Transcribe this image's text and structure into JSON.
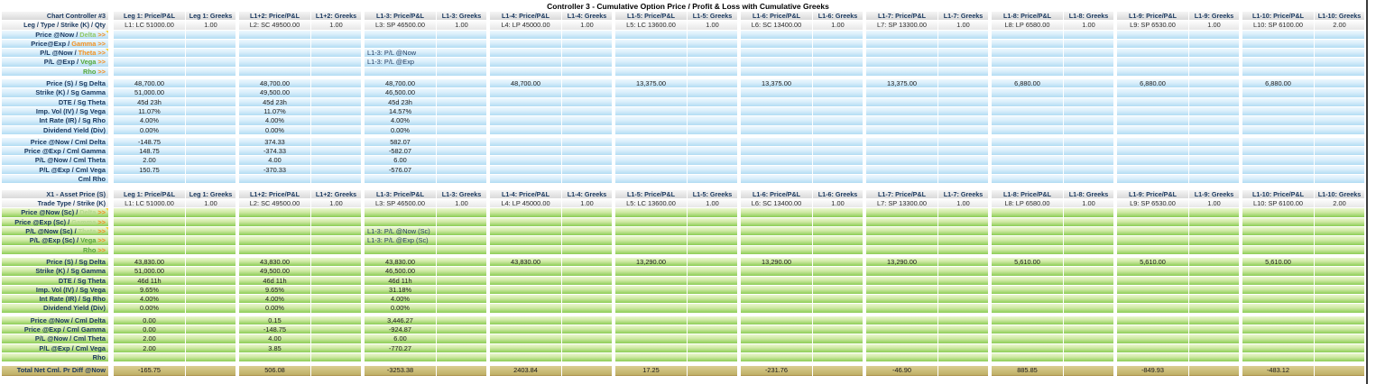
{
  "title": "Controller 3 - Cumulative Option Price / Profit & Loss with Cumulative Greeks",
  "colors": {
    "orange_accent": "#f08c1e",
    "green_accent": "#52a83a",
    "dim_green_blue_section": "#8fc866",
    "dim_green_green_section": "#b5d98e",
    "navy_label": "#17365d",
    "tan_total_row": "#c9bc77",
    "note_yellow": "#f6d33c"
  },
  "groups": [
    {
      "price_header": "Leg 1: Price/P&L",
      "greeks_header": "Leg 1: Greeks",
      "leg": "L1: LC 51000.00",
      "qty": "1.00"
    },
    {
      "price_header": "L1+2: Price/P&L",
      "greeks_header": "L1+2: Greeks",
      "leg": "L2: SC 49500.00",
      "qty": "1.00"
    },
    {
      "price_header": "L1-3: Price/P&L",
      "greeks_header": "L1-3: Greeks",
      "leg": "L3: SP 46500.00",
      "qty": "1.00"
    },
    {
      "price_header": "L1-4: Price/P&L",
      "greeks_header": "L1-4: Greeks",
      "leg": "L4: LP 45000.00",
      "qty": "1.00"
    },
    {
      "price_header": "L1-5: Price/P&L",
      "greeks_header": "L1-5: Greeks",
      "leg": "L5: LC 13600.00",
      "qty": "1.00"
    },
    {
      "price_header": "L1-6: Price/P&L",
      "greeks_header": "L1-6: Greeks",
      "leg": "L6: SC 13400.00",
      "qty": "1.00"
    },
    {
      "price_header": "L1-7: Price/P&L",
      "greeks_header": "L1-7: Greeks",
      "leg": "L7: SP 13300.00",
      "qty": "1.00"
    },
    {
      "price_header": "L1-8: Price/P&L",
      "greeks_header": "L1-8: Greeks",
      "leg": "L8: LP 6580.00",
      "qty": "1.00"
    },
    {
      "price_header": "L1-9: Price/P&L",
      "greeks_header": "L1-9: Greeks",
      "leg": "L9: SP 6530.00",
      "qty": "1.00"
    },
    {
      "price_header": "L1-10: Price/P&L",
      "greeks_header": "L1-10: Greeks",
      "leg": "L10: SP 6100.00",
      "qty": "2.00"
    }
  ],
  "sections": [
    {
      "theme": "blue",
      "corner_label": "Chart Controller #3",
      "corner_note": true,
      "leg_row_label": "Leg / Type / Strike (K) / Qty",
      "greek_rows": [
        {
          "label": "Price @Now /",
          "greek": "Delta",
          "arrows": ">>",
          "greek_color": "#8fc866",
          "note": true,
          "annotations": {}
        },
        {
          "label": "Price@Exp /",
          "greek": "Gamma",
          "arrows": ">>",
          "greek_color": "#f29222",
          "annotations": {}
        },
        {
          "label": "P/L @Now /",
          "greek": "Theta",
          "arrows": ">>",
          "greek_color": "#f29222",
          "note": true,
          "annotations": {
            "2": "L1-3: P/L @Now"
          }
        },
        {
          "label": "P/L @Exp /",
          "greek": "Vega",
          "arrows": ">>",
          "greek_color": "#52a83a",
          "annotations": {
            "2": "L1-3: P/L @Exp"
          }
        },
        {
          "label": "",
          "greek": "Rho",
          "arrows": ">>",
          "greek_color": "#52a83a",
          "annotations": {}
        }
      ],
      "param_rows": [
        {
          "label": "Price (S) / Sg Delta",
          "note": true,
          "values": [
            "48,700.00",
            "48,700.00",
            "48,700.00",
            "48,700.00",
            "13,375.00",
            "13,375.00",
            "13,375.00",
            "6,880.00",
            "6,880.00",
            "6,880.00"
          ]
        },
        {
          "label": "Strike (K) / Sg Gamma",
          "values": [
            "51,000.00",
            "49,500.00",
            "46,500.00",
            "",
            "",
            "",
            "",
            "",
            "",
            ""
          ]
        },
        {
          "label": "DTE / Sg Theta",
          "values": [
            "45d 23h",
            "45d 23h",
            "45d 23h",
            "",
            "",
            "",
            "",
            "",
            "",
            ""
          ]
        },
        {
          "label": "Imp. Vol (IV) / Sg Vega",
          "values": [
            "11.07%",
            "11.07%",
            "14.57%",
            "",
            "",
            "",
            "",
            "",
            "",
            ""
          ]
        },
        {
          "label": "Int Rate (IR) / Sg Rho",
          "values": [
            "4.00%",
            "4.00%",
            "4.00%",
            "",
            "",
            "",
            "",
            "",
            "",
            ""
          ]
        },
        {
          "label": "Dividend Yield (Div)",
          "values": [
            "0.00%",
            "0.00%",
            "0.00%",
            "",
            "",
            "",
            "",
            "",
            "",
            ""
          ]
        }
      ],
      "cml_rows": [
        {
          "label": "Price @Now / Cml Delta",
          "note": true,
          "values": [
            "-148.75",
            "374.33",
            "582.07",
            "",
            "",
            "",
            "",
            "",
            "",
            ""
          ]
        },
        {
          "label": "Price @Exp / Cml Gamma",
          "values": [
            "148.75",
            "-374.33",
            "-582.07",
            "",
            "",
            "",
            "",
            "",
            "",
            ""
          ]
        },
        {
          "label": "P/L @Now / Cml Theta",
          "values": [
            "2.00",
            "4.00",
            "6.00",
            "",
            "",
            "",
            "",
            "",
            "",
            ""
          ]
        },
        {
          "label": "P/L @Exp / Cml Vega",
          "values": [
            "150.75",
            "-370.33",
            "-576.07",
            "",
            "",
            "",
            "",
            "",
            "",
            ""
          ]
        },
        {
          "label": "Cml Rho",
          "values": [
            "",
            "",
            "",
            "",
            "",
            "",
            "",
            "",
            "",
            ""
          ]
        }
      ]
    },
    {
      "theme": "green",
      "corner_label": "X1 - Asset Price (S)",
      "corner_note": false,
      "leg_row_label": "Trade Type / Strike (K)",
      "greek_rows": [
        {
          "label": "Price @Now (Sc) /",
          "greek": "Delta",
          "arrows": ">>",
          "greek_color": "#b5d98e",
          "note": true,
          "annotations": {}
        },
        {
          "label": "Price @Exp (Sc) /",
          "greek": "Gamma",
          "arrows": ">>",
          "greek_color": "#b5d98e",
          "annotations": {}
        },
        {
          "label": "P/L @Now (Sc) /",
          "greek": "Theta",
          "arrows": ">>",
          "greek_color": "#b5d98e",
          "note": true,
          "annotations": {
            "2": "L1-3: P/L @Now (Sc)"
          }
        },
        {
          "label": "P/L @Exp (Sc) /",
          "greek": "Vega",
          "arrows": ">>",
          "greek_color": "#5aa53c",
          "annotations": {
            "2": "L1-3: P/L @Exp (Sc)"
          }
        },
        {
          "label": "",
          "greek": "Rho",
          "arrows": ">>",
          "greek_color": "#5aa53c",
          "annotations": {}
        }
      ],
      "param_rows": [
        {
          "label": "Price (S) / Sg Delta",
          "note": true,
          "values": [
            "43,830.00",
            "43,830.00",
            "43,830.00",
            "43,830.00",
            "13,290.00",
            "13,290.00",
            "13,290.00",
            "5,610.00",
            "5,610.00",
            "5,610.00"
          ]
        },
        {
          "label": "Strike (K) / Sg Gamma",
          "values": [
            "51,000.00",
            "49,500.00",
            "46,500.00",
            "",
            "",
            "",
            "",
            "",
            "",
            ""
          ]
        },
        {
          "label": "DTE / Sg Theta",
          "values": [
            "46d 11h",
            "46d 11h",
            "46d 11h",
            "",
            "",
            "",
            "",
            "",
            "",
            ""
          ]
        },
        {
          "label": "Imp. Vol (IV) / Sg Vega",
          "values": [
            "9.65%",
            "9.65%",
            "31.18%",
            "",
            "",
            "",
            "",
            "",
            "",
            ""
          ]
        },
        {
          "label": "Int Rate (IR) / Sg Rho",
          "values": [
            "4.00%",
            "4.00%",
            "4.00%",
            "",
            "",
            "",
            "",
            "",
            "",
            ""
          ]
        },
        {
          "label": "Dividend Yield (Div)",
          "values": [
            "0.00%",
            "0.00%",
            "0.00%",
            "",
            "",
            "",
            "",
            "",
            "",
            ""
          ]
        }
      ],
      "cml_rows": [
        {
          "label": "Price @Now / Cml Delta",
          "note": true,
          "values": [
            "0.00",
            "0.15",
            "3,446.27",
            "",
            "",
            "",
            "",
            "",
            "",
            ""
          ]
        },
        {
          "label": "Price @Exp / Cml Gamma",
          "values": [
            "0.00",
            "-148.75",
            "-924.87",
            "",
            "",
            "",
            "",
            "",
            "",
            ""
          ]
        },
        {
          "label": "P/L @Now / Cml Theta",
          "values": [
            "2.00",
            "4.00",
            "6.00",
            "",
            "",
            "",
            "",
            "",
            "",
            ""
          ]
        },
        {
          "label": "P/L @Exp / Cml Vega",
          "values": [
            "2.00",
            "3.85",
            "-770.27",
            "",
            "",
            "",
            "",
            "",
            "",
            ""
          ]
        },
        {
          "label": "Rho",
          "values": [
            "",
            "",
            "",
            "",
            "",
            "",
            "",
            "",
            "",
            ""
          ]
        }
      ]
    }
  ],
  "total_row": {
    "label": "Total Net Cml. Pr Diff @Now",
    "values": [
      "-165.75",
      "506.08",
      "-3253.38",
      "2403.84",
      "17.25",
      "-231.76",
      "-46.90",
      "885.85",
      "-849.93",
      "-483.12"
    ]
  }
}
